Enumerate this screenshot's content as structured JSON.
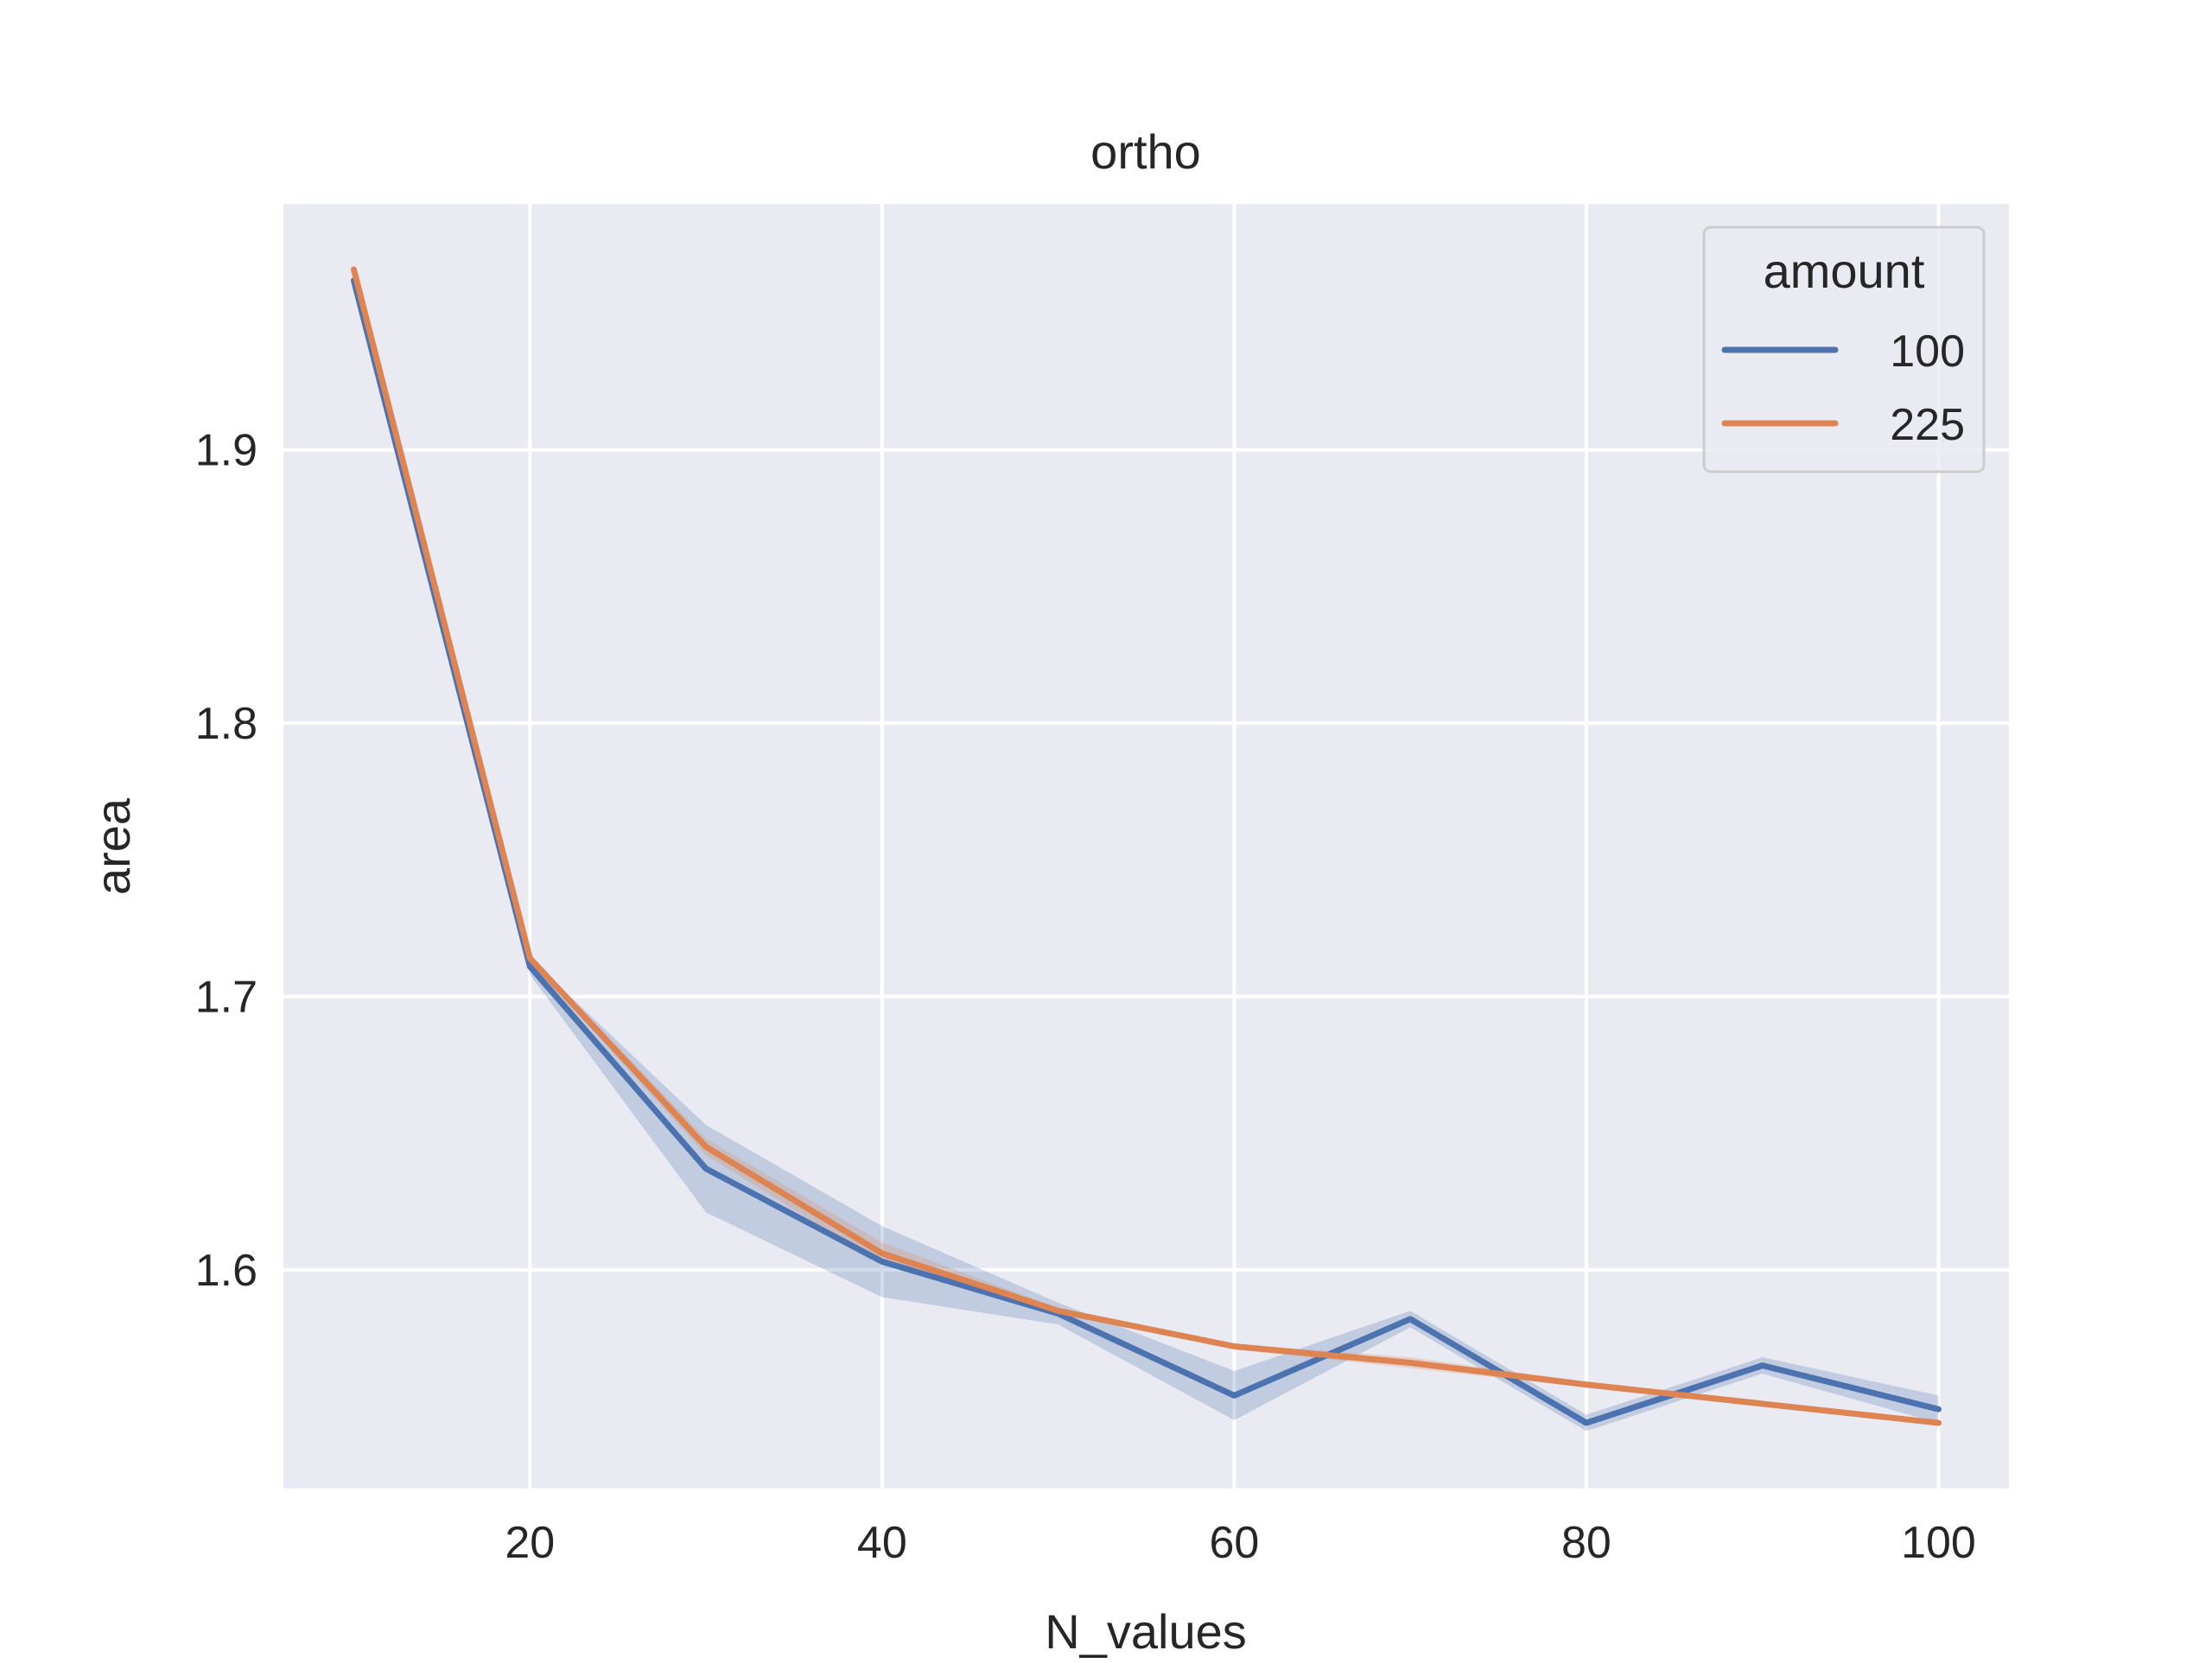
{
  "chart_data": {
    "type": "line",
    "title": "ortho",
    "xlabel": "N_values",
    "ylabel": "area",
    "xlim": [
      6,
      104
    ],
    "ylim": [
      1.52,
      1.99
    ],
    "xticks": [
      20,
      40,
      60,
      80,
      100
    ],
    "yticks": [
      1.6,
      1.7,
      1.8,
      1.9
    ],
    "xtick_labels": [
      "20",
      "40",
      "60",
      "80",
      "100"
    ],
    "ytick_labels": [
      "1.6",
      "1.7",
      "1.8",
      "1.9"
    ],
    "grid": true,
    "background": "#eaeaf2",
    "legend": {
      "title": "amount",
      "placement": "top-right"
    },
    "x": [
      10,
      20,
      30,
      40,
      50,
      60,
      70,
      80,
      90,
      100
    ],
    "series": [
      {
        "name": "100",
        "color": "#4c72b0",
        "values": [
          1.962,
          1.711,
          1.637,
          1.603,
          1.584,
          1.554,
          1.582,
          1.544,
          1.565,
          1.549
        ],
        "ci_low": [
          1.96,
          1.708,
          1.621,
          1.59,
          1.58,
          1.545,
          1.579,
          1.541,
          1.562,
          1.544
        ],
        "ci_high": [
          1.964,
          1.714,
          1.653,
          1.616,
          1.588,
          1.563,
          1.585,
          1.547,
          1.568,
          1.554
        ]
      },
      {
        "name": "225",
        "color": "#dd8452",
        "values": [
          1.966,
          1.714,
          1.645,
          1.606,
          1.585,
          1.572,
          1.566,
          1.558,
          1.551,
          1.544
        ],
        "ci_low": [
          1.965,
          1.713,
          1.642,
          1.602,
          1.584,
          1.571,
          1.564,
          1.557,
          1.55,
          1.543
        ],
        "ci_high": [
          1.967,
          1.715,
          1.648,
          1.61,
          1.586,
          1.573,
          1.568,
          1.559,
          1.552,
          1.545
        ]
      }
    ]
  }
}
